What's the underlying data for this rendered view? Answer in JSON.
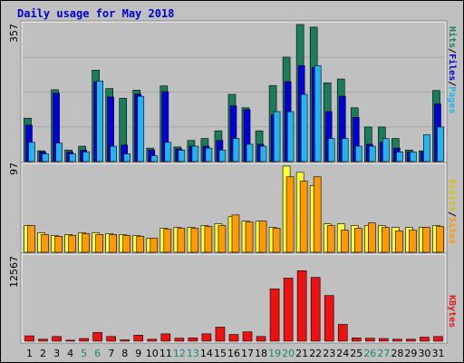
{
  "title": "Daily usage for May 2018",
  "colors": {
    "background": "#c0c0c0",
    "hits": "#1a7d5a",
    "files": "#0000dd",
    "pages": "#22b4f0",
    "visits": "#ffff33",
    "sites": "#ff9900",
    "kbytes": "#ee1111",
    "weekend_day": "#1a8a6a",
    "weekday": "#000000",
    "title": "#0000cc"
  },
  "chart_data": [
    {
      "type": "bar",
      "name": "hits-files-pages",
      "labels": {
        "pages": "Pages",
        "files": "Files",
        "hits": "Hits",
        "sep": "/"
      },
      "ymax_label": "357",
      "ylim": [
        0,
        357
      ],
      "categories": [
        "1",
        "2",
        "3",
        "4",
        "5",
        "6",
        "7",
        "8",
        "9",
        "10",
        "11",
        "12",
        "13",
        "14",
        "15",
        "16",
        "17",
        "18",
        "19",
        "20",
        "21",
        "22",
        "23",
        "24",
        "25",
        "26",
        "27",
        "28",
        "29",
        "30",
        "31"
      ],
      "weekend_days": [
        "5",
        "6",
        "12",
        "13",
        "19",
        "20",
        "26",
        "27"
      ],
      "series": [
        {
          "key": "hits",
          "values": [
            113,
            28,
            187,
            30,
            40,
            238,
            190,
            165,
            186,
            35,
            197,
            38,
            55,
            60,
            80,
            175,
            140,
            80,
            198,
            272,
            357,
            350,
            205,
            215,
            140,
            90,
            90,
            60,
            30,
            28,
            185
          ]
        },
        {
          "key": "files",
          "values": [
            95,
            25,
            178,
            25,
            30,
            208,
            168,
            43,
            176,
            30,
            182,
            33,
            40,
            40,
            55,
            145,
            135,
            45,
            122,
            208,
            250,
            245,
            130,
            170,
            115,
            45,
            50,
            35,
            25,
            25,
            150
          ]
        },
        {
          "key": "pages",
          "values": [
            50,
            20,
            48,
            20,
            25,
            210,
            40,
            20,
            170,
            15,
            50,
            30,
            40,
            35,
            30,
            60,
            45,
            40,
            130,
            130,
            175,
            250,
            60,
            60,
            40,
            40,
            60,
            25,
            25,
            70,
            90
          ]
        }
      ]
    },
    {
      "type": "bar",
      "name": "visits-sites",
      "labels": {
        "sites": "Sites",
        "visits": "Visits",
        "sep": "/"
      },
      "ymax_label": "97",
      "ylim": [
        0,
        97
      ],
      "series": [
        {
          "key": "visits",
          "values": [
            30,
            22,
            19,
            20,
            22,
            22,
            21,
            20,
            19,
            16,
            27,
            28,
            28,
            30,
            32,
            40,
            35,
            35,
            28,
            97,
            90,
            75,
            32,
            32,
            30,
            30,
            30,
            28,
            28,
            28,
            30
          ]
        },
        {
          "key": "sites",
          "values": [
            30,
            20,
            18,
            19,
            21,
            20,
            20,
            19,
            18,
            16,
            26,
            27,
            27,
            29,
            30,
            42,
            34,
            35,
            27,
            85,
            80,
            85,
            30,
            25,
            27,
            33,
            28,
            24,
            25,
            28,
            29
          ]
        }
      ]
    },
    {
      "type": "bar",
      "name": "kbytes",
      "labels": {
        "kbytes": "KBytes"
      },
      "ymax_label": "12567",
      "ylim": [
        0,
        12567
      ],
      "series": [
        {
          "key": "kbytes",
          "values": [
            800,
            300,
            700,
            150,
            400,
            1300,
            700,
            200,
            900,
            300,
            1100,
            450,
            500,
            1100,
            2100,
            1000,
            1400,
            700,
            7800,
            9400,
            10500,
            9500,
            6800,
            2500,
            500,
            450,
            400,
            300,
            300,
            600,
            700
          ]
        }
      ]
    }
  ]
}
